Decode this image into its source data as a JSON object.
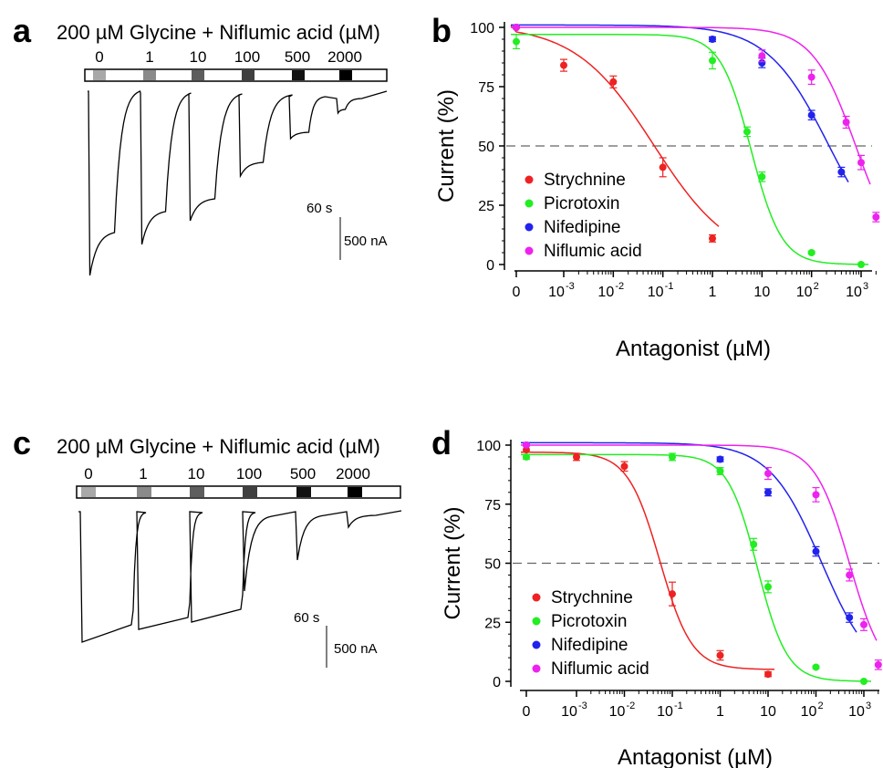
{
  "panels": {
    "a": {
      "letter": "a",
      "title": "200 µM Glycine + Niflumic acid (µM)",
      "concentrations": [
        "0",
        "1",
        "10",
        "100",
        "500",
        "2000"
      ],
      "bar_colors": [
        "#a8a8a8",
        "#8a8a8a",
        "#5e5e5e",
        "#404040",
        "#111111",
        "#000000"
      ],
      "scale_time": "60 s",
      "scale_current": "500 nA"
    },
    "b": {
      "letter": "b"
    },
    "c": {
      "letter": "c",
      "title": "200 µM Glycine + Niflumic acid (µM)",
      "concentrations": [
        "0",
        "1",
        "10",
        "100",
        "500",
        "2000"
      ],
      "bar_colors": [
        "#a8a8a8",
        "#8a8a8a",
        "#5e5e5e",
        "#404040",
        "#111111",
        "#000000"
      ],
      "scale_time": "60 s",
      "scale_current": "500 nA"
    },
    "d": {
      "letter": "d"
    }
  },
  "chart_data": [
    {
      "panel": "b",
      "type": "scatter",
      "xlabel": "Antagonist (µM)",
      "ylabel": "Current (%)",
      "x_scale": "log",
      "x_tick_labels": [
        "0",
        "10",
        "-3",
        "10",
        "-2",
        "10",
        "-1",
        "1",
        "10",
        "10",
        "2",
        "10",
        "3"
      ],
      "y_ticks": [
        0,
        25,
        50,
        75,
        100
      ],
      "ylim": [
        0,
        100
      ],
      "reference_line": 50,
      "legend_position": "bottom-left",
      "series": [
        {
          "name": "Strychnine",
          "color": "#ee2222",
          "x": [
            0,
            0.001,
            0.01,
            0.1,
            1
          ],
          "y": [
            100,
            84,
            77,
            41,
            11
          ],
          "err": [
            0,
            2.5,
            2.5,
            4,
            1.5
          ],
          "fit": {
            "ic50": 0.065,
            "hill": 0.55,
            "top": 101,
            "bottom": 0
          }
        },
        {
          "name": "Picrotoxin",
          "color": "#22ee22",
          "x": [
            0,
            1,
            5,
            10,
            100,
            1000
          ],
          "y": [
            94,
            86,
            56,
            37,
            5,
            0
          ],
          "err": [
            3,
            3.5,
            2,
            2,
            0.5,
            0
          ],
          "fit": {
            "ic50": 6,
            "hill": 1.4,
            "top": 97,
            "bottom": 0
          }
        },
        {
          "name": "Nifedipine",
          "color": "#2222ee",
          "x": [
            0,
            1,
            10,
            100,
            400
          ],
          "y": [
            100,
            95,
            85,
            63,
            39
          ],
          "err": [
            0,
            1,
            2,
            2,
            2
          ],
          "fit": {
            "ic50": 220,
            "hill": 0.7,
            "top": 101,
            "bottom": 0
          }
        },
        {
          "name": "Niflumic acid",
          "color": "#ee22ee",
          "x": [
            0,
            10,
            100,
            500,
            1000,
            2000
          ],
          "y": [
            100,
            88,
            79,
            60,
            43,
            20
          ],
          "err": [
            0,
            2.5,
            3,
            2.5,
            3,
            2
          ],
          "fit": {
            "ic50": 780,
            "hill": 1.0,
            "top": 100,
            "bottom": 0
          }
        }
      ]
    },
    {
      "panel": "d",
      "type": "scatter",
      "xlabel": "Antagonist (µM)",
      "ylabel": "Current (%)",
      "x_scale": "log",
      "x_tick_labels": [
        "0",
        "10",
        "-3",
        "10",
        "-2",
        "10",
        "-1",
        "1",
        "10",
        "10",
        "2",
        "10",
        "3"
      ],
      "y_ticks": [
        0,
        25,
        50,
        75,
        100
      ],
      "ylim": [
        0,
        100
      ],
      "reference_line": 50,
      "legend_position": "bottom-left",
      "series": [
        {
          "name": "Strychnine",
          "color": "#ee2222",
          "x": [
            0,
            0.001,
            0.01,
            0.1,
            1,
            10
          ],
          "y": [
            98,
            95,
            91,
            37,
            11,
            3
          ],
          "err": [
            0,
            1.5,
            2,
            5,
            2,
            1
          ],
          "fit": {
            "ic50": 0.055,
            "hill": 1.3,
            "top": 97,
            "bottom": 5
          }
        },
        {
          "name": "Picrotoxin",
          "color": "#22ee22",
          "x": [
            0,
            0.1,
            1,
            5,
            10,
            100,
            1000
          ],
          "y": [
            95,
            95,
            89,
            58,
            40,
            6,
            0
          ],
          "err": [
            1,
            1.5,
            1.5,
            2.5,
            2.5,
            0.5,
            0
          ],
          "fit": {
            "ic50": 6,
            "hill": 1.4,
            "top": 96,
            "bottom": 0
          }
        },
        {
          "name": "Nifedipine",
          "color": "#2222ee",
          "x": [
            0,
            1,
            10,
            100,
            500
          ],
          "y": [
            100,
            94,
            80,
            55,
            27
          ],
          "err": [
            0,
            1,
            1.5,
            2,
            2
          ],
          "fit": {
            "ic50": 130,
            "hill": 0.8,
            "top": 101,
            "bottom": 0
          }
        },
        {
          "name": "Niflumic acid",
          "color": "#ee22ee",
          "x": [
            0,
            10,
            100,
            500,
            1000,
            2000
          ],
          "y": [
            100,
            88,
            79,
            45,
            24,
            7
          ],
          "err": [
            0,
            2.5,
            3,
            2.5,
            2.5,
            2
          ],
          "fit": {
            "ic50": 500,
            "hill": 1.2,
            "top": 100,
            "bottom": 0
          }
        }
      ]
    }
  ]
}
